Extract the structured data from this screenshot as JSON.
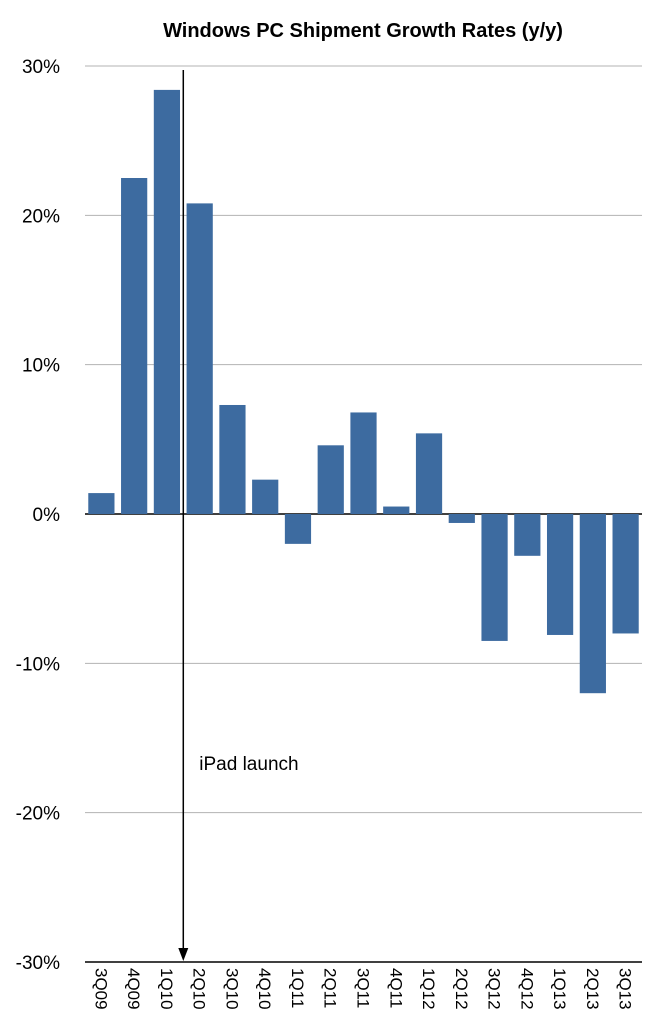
{
  "chart_data": {
    "type": "bar",
    "title": "Windows PC Shipment Growth Rates (y/y)",
    "xlabel": "",
    "ylabel": "",
    "categories": [
      "3Q09",
      "4Q09",
      "1Q10",
      "2Q10",
      "3Q10",
      "4Q10",
      "1Q11",
      "2Q11",
      "3Q11",
      "4Q11",
      "1Q12",
      "2Q12",
      "3Q12",
      "4Q12",
      "1Q13",
      "2Q13",
      "3Q13"
    ],
    "values": [
      1.4,
      22.5,
      28.4,
      20.8,
      7.3,
      2.3,
      -2.0,
      4.6,
      6.8,
      0.5,
      5.4,
      -0.6,
      -8.5,
      -2.8,
      -8.1,
      -12.0,
      -8.0
    ],
    "yticks": [
      30,
      20,
      10,
      0,
      -10,
      -20,
      -30
    ],
    "ytick_labels": [
      "30%",
      "20%",
      "10%",
      "0%",
      "-10%",
      "-20%",
      "-30%"
    ],
    "ylim": [
      -30,
      30
    ],
    "grid": true,
    "bar_color": "#3d6ba0",
    "annotations": [
      {
        "text": "iPad launch",
        "category": "2Q10",
        "type": "vertical-arrow"
      }
    ]
  }
}
